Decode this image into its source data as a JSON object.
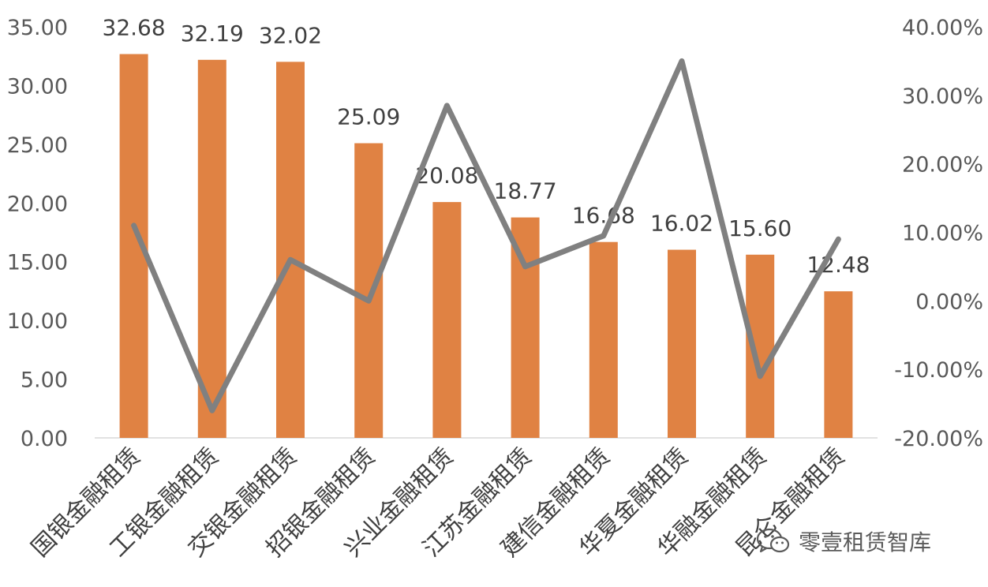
{
  "chart_data": {
    "type": "bar",
    "categories": [
      "国银金融租赁",
      "工银金融租赁",
      "交银金融租赁",
      "招银金融租赁",
      "兴业金融租赁",
      "江苏金融租赁",
      "建信金融租赁",
      "华夏金融租赁",
      "华融金融租赁",
      "昆仑金融租赁"
    ],
    "series": [
      {
        "type": "bar",
        "axis": "left",
        "values": [
          32.68,
          32.19,
          32.02,
          25.09,
          20.08,
          18.77,
          16.68,
          16.02,
          15.6,
          12.48
        ],
        "labels": [
          "32.68",
          "32.19",
          "32.02",
          "25.09",
          "20.08",
          "18.77",
          "16.68",
          "16.02",
          "15.60",
          "12.48"
        ],
        "color": "#E08243"
      },
      {
        "type": "line",
        "axis": "right",
        "values": [
          0.11,
          -0.16,
          0.06,
          0.0,
          0.285,
          0.05,
          0.095,
          0.35,
          -0.11,
          0.09
        ],
        "color": "#808080"
      }
    ],
    "y_left": {
      "min": 0,
      "max": 35,
      "ticks": [
        "0.00",
        "5.00",
        "10.00",
        "15.00",
        "20.00",
        "25.00",
        "30.00",
        "35.00"
      ]
    },
    "y_right": {
      "min": -0.2,
      "max": 0.4,
      "ticks": [
        "-20.00%",
        "-10.00%",
        "0.00%",
        "10.00%",
        "20.00%",
        "30.00%",
        "40.00%"
      ]
    },
    "grid": false,
    "legend": "none"
  },
  "watermark": {
    "text": "零壹租赁智库",
    "icon": "wechat-icon"
  }
}
